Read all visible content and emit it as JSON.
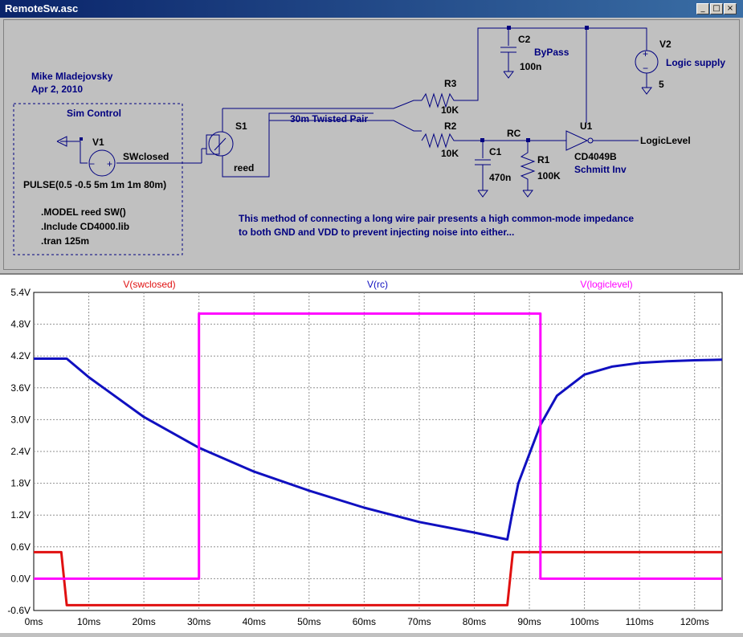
{
  "window": {
    "title": "RemoteSw.asc",
    "buttons": {
      "minimize": "_",
      "maximize": "□",
      "close": "×"
    }
  },
  "schematic": {
    "author": "Mike Mladejovsky",
    "date": "Apr 2, 2010",
    "sim_control_label": "Sim Control",
    "v1": {
      "name": "V1",
      "net": "SWclosed",
      "value": "PULSE(0.5 -0.5 5m 1m 1m 80m)"
    },
    "directives": [
      ".MODEL reed SW()",
      ".Include CD4000.lib",
      ".tran 125m"
    ],
    "s1": {
      "name": "S1",
      "model": "reed"
    },
    "twisted_pair_label": "30m Twisted Pair",
    "r3": {
      "name": "R3",
      "value": "10K"
    },
    "r2": {
      "name": "R2",
      "value": "10K"
    },
    "c2": {
      "name": "C2",
      "label": "ByPass",
      "value": "100n"
    },
    "v2": {
      "name": "V2",
      "label": "Logic supply",
      "value": "5"
    },
    "c1": {
      "name": "C1",
      "value": "470n"
    },
    "r1": {
      "name": "R1",
      "value": "100K"
    },
    "rc_net": "RC",
    "u1": {
      "name": "U1",
      "part": "CD4049B",
      "desc": "Schmitt Inv"
    },
    "output_net": "LogicLevel",
    "note_line1": "This method of connecting a long wire pair presents a high common-mode impedance",
    "note_line2": "to both GND and VDD to prevent injecting noise into either..."
  },
  "chart_data": {
    "type": "line",
    "xlabel": "",
    "ylabel": "",
    "xlim": [
      0,
      125
    ],
    "ylim": [
      -0.6,
      5.4
    ],
    "x_ticks": [
      "0ms",
      "10ms",
      "20ms",
      "30ms",
      "40ms",
      "50ms",
      "60ms",
      "70ms",
      "80ms",
      "90ms",
      "100ms",
      "110ms",
      "120ms"
    ],
    "y_ticks": [
      "5.4V",
      "4.8V",
      "4.2V",
      "3.6V",
      "3.0V",
      "2.4V",
      "1.8V",
      "1.2V",
      "0.6V",
      "0.0V",
      "-0.6V"
    ],
    "grid": true,
    "series": [
      {
        "name": "V(swclosed)",
        "color": "#e01010",
        "x": [
          0,
          5,
          6,
          86,
          87,
          125
        ],
        "y": [
          0.5,
          0.5,
          -0.5,
          -0.5,
          0.5,
          0.5
        ]
      },
      {
        "name": "V(rc)",
        "color": "#1010c0",
        "x": [
          0,
          6,
          10,
          20,
          30,
          40,
          50,
          60,
          70,
          80,
          86,
          87,
          88,
          90,
          92,
          95,
          100,
          105,
          110,
          115,
          120,
          125
        ],
        "y": [
          4.15,
          4.15,
          3.8,
          3.05,
          2.47,
          2.02,
          1.66,
          1.34,
          1.07,
          0.87,
          0.74,
          1.3,
          1.8,
          2.35,
          2.9,
          3.45,
          3.85,
          4.0,
          4.07,
          4.1,
          4.12,
          4.13
        ]
      },
      {
        "name": "V(logiclevel)",
        "color": "#ff00ff",
        "x": [
          0,
          30,
          30,
          92,
          92,
          125
        ],
        "y": [
          0.0,
          0.0,
          5.0,
          5.0,
          0.0,
          0.0
        ]
      }
    ]
  }
}
